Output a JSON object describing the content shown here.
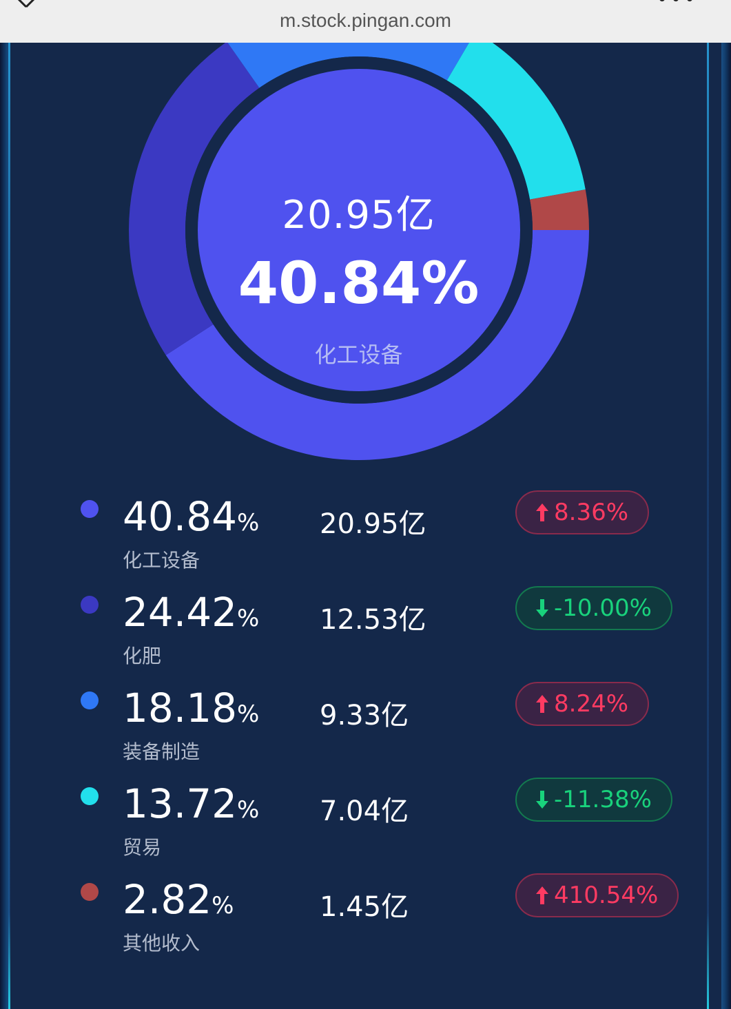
{
  "browser": {
    "url": "m.stock.pingan.com"
  },
  "colors": {
    "panel_bg": "#14284a",
    "up": "#ff3b62",
    "down": "#19d27c"
  },
  "donut": {
    "highlight_amount": "20.95亿",
    "highlight_percent": "40.84%",
    "highlight_name": "化工设备",
    "segments": [
      {
        "name": "化工设备",
        "percent": 40.84,
        "color": "#4f52ef"
      },
      {
        "name": "化肥",
        "percent": 24.42,
        "color": "#3b39c2"
      },
      {
        "name": "装备制造",
        "percent": 18.18,
        "color": "#2f78f5"
      },
      {
        "name": "贸易",
        "percent": 13.72,
        "color": "#22dfec"
      },
      {
        "name": "其他收入",
        "percent": 2.82,
        "color": "#b04848"
      }
    ]
  },
  "legend": [
    {
      "percent": "40.84",
      "pct_sign": "%",
      "name": "化工设备",
      "amount": "20.95亿",
      "change": "8.36%",
      "direction": "up",
      "color": "#4f52ef"
    },
    {
      "percent": "24.42",
      "pct_sign": "%",
      "name": "化肥",
      "amount": "12.53亿",
      "change": "-10.00%",
      "direction": "down",
      "color": "#3b39c2"
    },
    {
      "percent": "18.18",
      "pct_sign": "%",
      "name": "装备制造",
      "amount": "9.33亿",
      "change": "8.24%",
      "direction": "up",
      "color": "#2f78f5"
    },
    {
      "percent": "13.72",
      "pct_sign": "%",
      "name": "贸易",
      "amount": "7.04亿",
      "change": "-11.38%",
      "direction": "down",
      "color": "#22dfec"
    },
    {
      "percent": "2.82",
      "pct_sign": "%",
      "name": "其他收入",
      "amount": "1.45亿",
      "change": "410.54%",
      "direction": "up",
      "color": "#b04848"
    }
  ]
}
